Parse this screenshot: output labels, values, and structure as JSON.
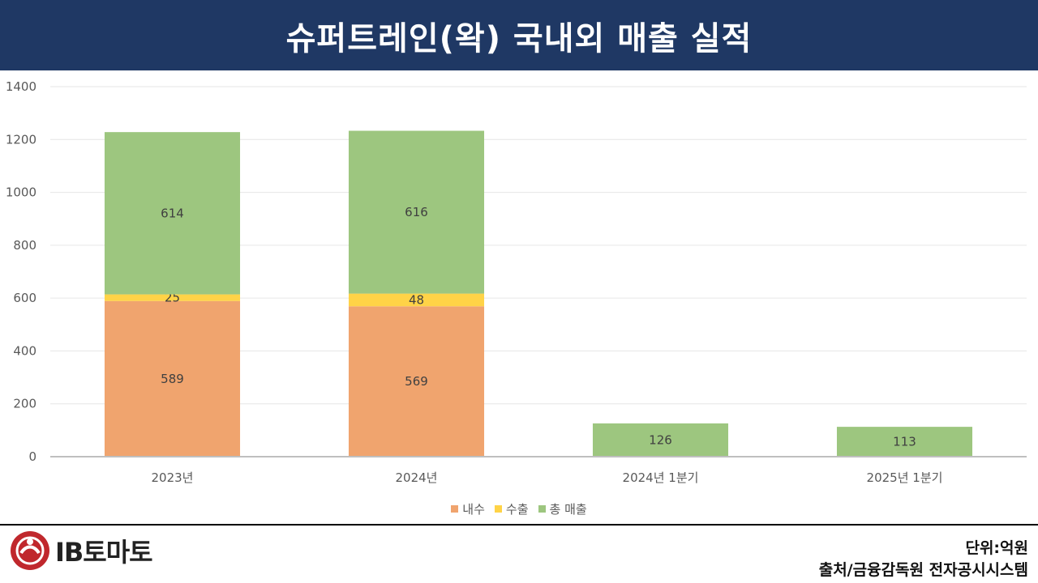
{
  "header": {
    "title": "슈퍼트레인(왁) 국내외 매출 실적"
  },
  "chart_data": {
    "type": "bar",
    "stacked": true,
    "categories": [
      "2023년",
      "2024년",
      "2024년 1분기",
      "2025년 1분기"
    ],
    "series": [
      {
        "name": "내수",
        "values": [
          589,
          569,
          null,
          null
        ],
        "color": "#f0a46e"
      },
      {
        "name": "수출",
        "values": [
          25,
          48,
          null,
          null
        ],
        "color": "#ffd347"
      },
      {
        "name": "총 매출",
        "values": [
          614,
          616,
          126,
          113
        ],
        "color": "#9dc67f"
      }
    ],
    "ylim": [
      0,
      1400
    ],
    "yticks": [
      0,
      200,
      400,
      600,
      800,
      1000,
      1200,
      1400
    ],
    "grid": true,
    "legend_position": "bottom"
  },
  "footer": {
    "logo_text": "IB토마토",
    "unit": "단위:억원",
    "source": "출처/금융감독원 전자공시시스템"
  }
}
